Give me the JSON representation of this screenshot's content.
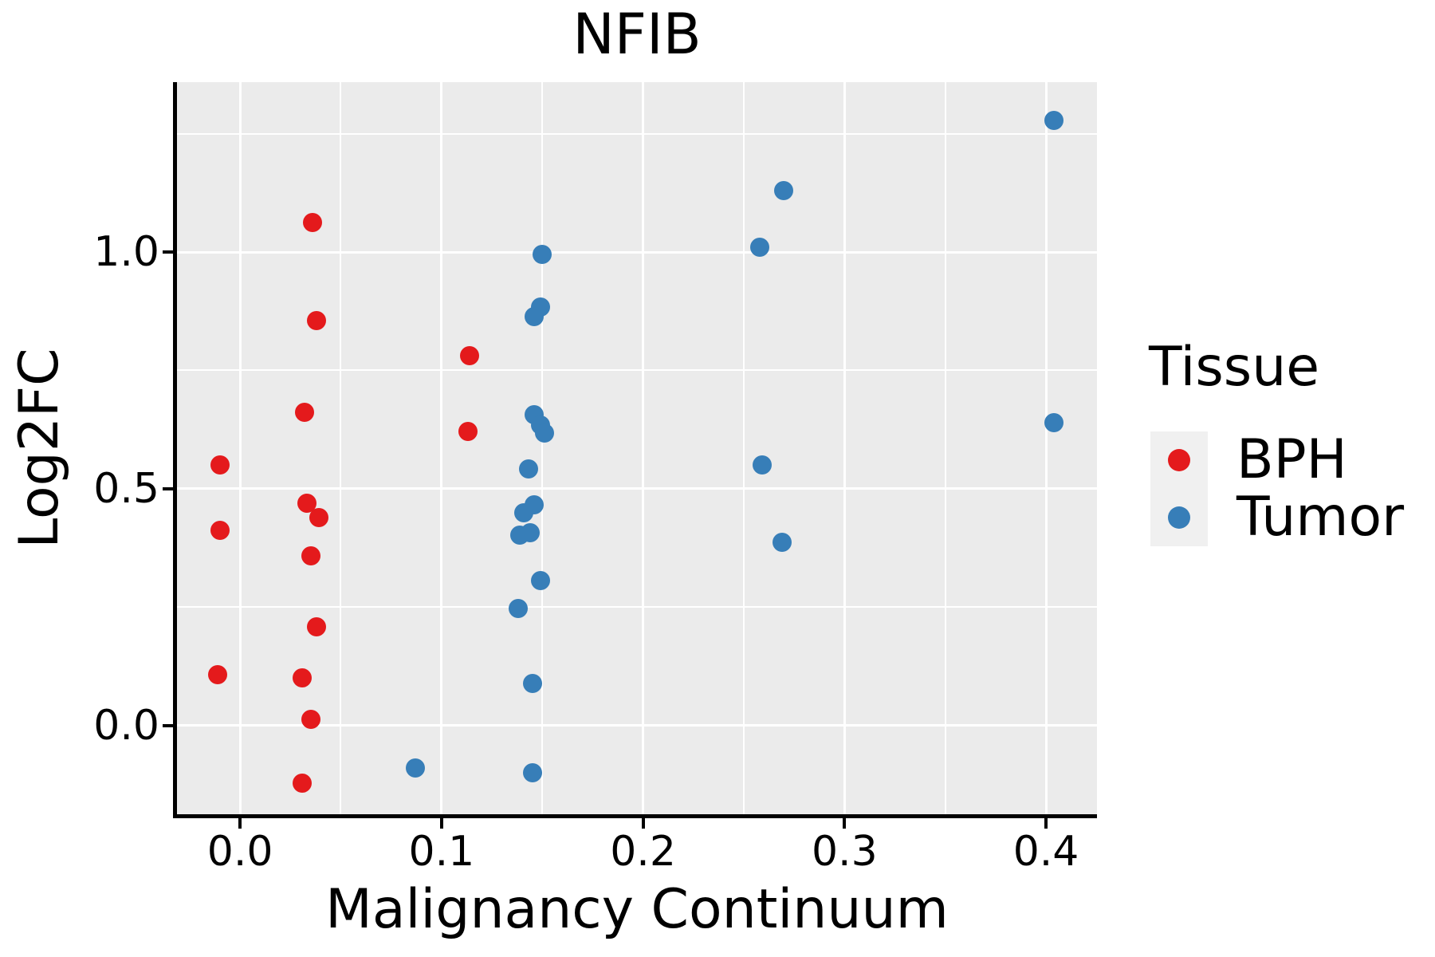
{
  "title": "NFIB",
  "colors": {
    "bph": "#E41A1C",
    "tumor": "#377EB8",
    "panel_background": "#EBEBEB",
    "gridline": "#FFFFFF",
    "legend_key_background": "#F0F0F0",
    "axis_line": "#000000",
    "text": "#000000"
  },
  "axes": {
    "x": {
      "label": "Malignancy Continuum",
      "tick_values": [
        0.0,
        0.1,
        0.2,
        0.3,
        0.4
      ],
      "tick_labels": [
        "0.0",
        "0.1",
        "0.2",
        "0.3",
        "0.4"
      ],
      "minor_tick_values": [
        0.05,
        0.15,
        0.25,
        0.35
      ]
    },
    "y": {
      "label": "Log2FC",
      "tick_values": [
        0.0,
        0.5,
        1.0
      ],
      "tick_labels": [
        "0.0",
        "0.5",
        "1.0"
      ],
      "minor_tick_values": [
        0.25,
        0.75,
        1.25
      ]
    }
  },
  "legend": {
    "title": "Tissue",
    "items": [
      {
        "label": "BPH",
        "color": "#E41A1C"
      },
      {
        "label": "Tumor",
        "color": "#377EB8"
      }
    ]
  },
  "chart_data": {
    "type": "scatter",
    "title": "NFIB",
    "xlabel": "Malignancy Continuum",
    "ylabel": "Log2FC",
    "xlim": [
      -0.0313,
      0.4253
    ],
    "ylim": [
      -0.1869,
      1.3586
    ],
    "x_major_ticks": [
      0.0,
      0.1,
      0.2,
      0.3,
      0.4
    ],
    "y_major_ticks": [
      0.0,
      0.5,
      1.0
    ],
    "grid": true,
    "legend_position": "right",
    "legend_title": "Tissue",
    "series": [
      {
        "name": "BPH",
        "color": "#E41A1C",
        "points": [
          [
            -0.01,
            0.551
          ],
          [
            -0.01,
            0.412
          ],
          [
            -0.011,
            0.107
          ],
          [
            0.036,
            1.062
          ],
          [
            0.038,
            0.856
          ],
          [
            0.032,
            0.662
          ],
          [
            0.033,
            0.47
          ],
          [
            0.039,
            0.439
          ],
          [
            0.035,
            0.358
          ],
          [
            0.038,
            0.208
          ],
          [
            0.031,
            0.101
          ],
          [
            0.035,
            0.014
          ],
          [
            0.031,
            -0.121
          ],
          [
            0.114,
            0.781
          ],
          [
            0.113,
            0.622
          ]
        ]
      },
      {
        "name": "Tumor",
        "color": "#377EB8",
        "points": [
          [
            0.087,
            -0.09
          ],
          [
            0.15,
            0.995
          ],
          [
            0.149,
            0.884
          ],
          [
            0.146,
            0.863
          ],
          [
            0.146,
            0.657
          ],
          [
            0.149,
            0.635
          ],
          [
            0.151,
            0.618
          ],
          [
            0.143,
            0.542
          ],
          [
            0.146,
            0.466
          ],
          [
            0.141,
            0.449
          ],
          [
            0.139,
            0.403
          ],
          [
            0.144,
            0.407
          ],
          [
            0.149,
            0.307
          ],
          [
            0.138,
            0.247
          ],
          [
            0.145,
            0.09
          ],
          [
            0.145,
            -0.1
          ],
          [
            0.27,
            1.13
          ],
          [
            0.258,
            1.01
          ],
          [
            0.259,
            0.55
          ],
          [
            0.269,
            0.388
          ],
          [
            0.404,
            1.277
          ],
          [
            0.404,
            0.64
          ]
        ]
      }
    ]
  }
}
